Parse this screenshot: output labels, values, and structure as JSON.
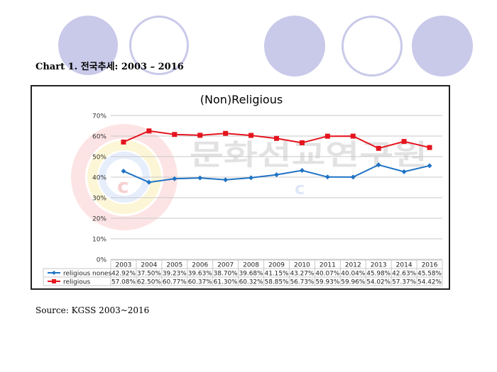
{
  "heading": "Chart 1. 전국추세: 2003 – 2016",
  "source": "Source: KGSS 2003~2016",
  "watermark": {
    "text": "문화선교연구원",
    "letter": "c"
  },
  "colors": {
    "decor_circle": "#c9c9ea",
    "religious_nones": "#1f73c4",
    "religious": "#e4151f",
    "grid": "#c8c8c8",
    "watermark_text": "#d8d8d8"
  },
  "chart_data": {
    "type": "line",
    "title": "(Non)Religious",
    "xlabel": "",
    "ylabel": "",
    "ylim": [
      0,
      70
    ],
    "y_ticks": [
      "0%",
      "10%",
      "20%",
      "30%",
      "40%",
      "50%",
      "60%",
      "70%"
    ],
    "grid": true,
    "legend_placement": "data-table-below",
    "categories": [
      "2003",
      "2004",
      "2005",
      "2006",
      "2007",
      "2008",
      "2009",
      "2010",
      "2011",
      "2012",
      "2013",
      "2014",
      "2016"
    ],
    "series": [
      {
        "name": "religious nones",
        "color": "#1f73c4",
        "marker": "diamond",
        "values": [
          42.92,
          37.5,
          39.23,
          39.63,
          38.7,
          39.68,
          41.15,
          43.27,
          40.07,
          40.04,
          45.98,
          42.63,
          45.58
        ],
        "labels": [
          "42.92%",
          "37.50%",
          "39.23%",
          "39.63%",
          "38.70%",
          "39.68%",
          "41.15%",
          "43.27%",
          "40.07%",
          "40.04%",
          "45.98%",
          "42.63%",
          "45.58%"
        ]
      },
      {
        "name": "religious",
        "color": "#e4151f",
        "marker": "square",
        "values": [
          57.08,
          62.5,
          60.77,
          60.37,
          61.3,
          60.32,
          58.85,
          56.73,
          59.93,
          59.96,
          54.02,
          57.37,
          54.42
        ],
        "labels": [
          "57.08%",
          "62.50%",
          "60.77%",
          "60.37%",
          "61.30%",
          "60.32%",
          "58.85%",
          "56.73%",
          "59.93%",
          "59.96%",
          "54.02%",
          "57.37%",
          "54.42%"
        ]
      }
    ]
  }
}
